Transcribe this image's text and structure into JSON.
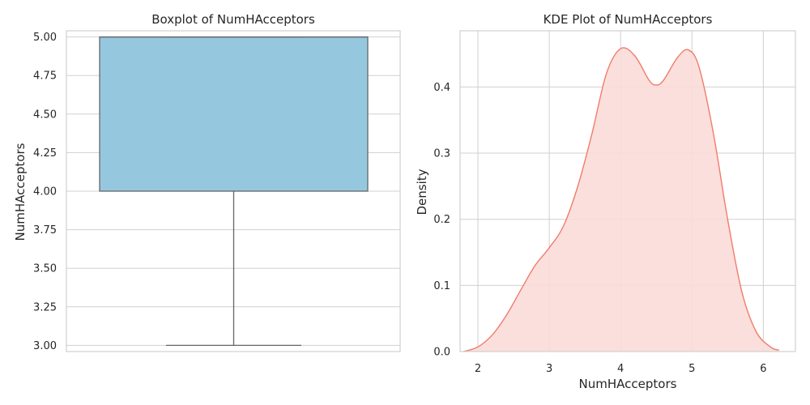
{
  "chart_data": [
    {
      "type": "boxplot",
      "title": "Boxplot of NumHAcceptors",
      "xlabel": "",
      "ylabel": "NumHAcceptors",
      "ylim": [
        2.96,
        5.04
      ],
      "yticks": [
        3.0,
        3.25,
        3.5,
        3.75,
        4.0,
        4.25,
        4.5,
        4.75,
        5.0
      ],
      "ytick_labels": [
        "3.00",
        "3.25",
        "3.50",
        "3.75",
        "4.00",
        "4.25",
        "4.50",
        "4.75",
        "5.00"
      ],
      "box": {
        "min": 3.0,
        "q1": 4.0,
        "median": 5.0,
        "q3": 5.0,
        "max": 5.0
      },
      "grid": true,
      "colors": {
        "box_fill": "#95c8df",
        "box_edge": "#666666"
      }
    },
    {
      "type": "area",
      "title": "KDE Plot of NumHAcceptors",
      "xlabel": "NumHAcceptors",
      "ylabel": "Density",
      "xlim": [
        1.75,
        6.45
      ],
      "ylim": [
        0.0,
        0.485
      ],
      "xticks": [
        2,
        3,
        4,
        5,
        6
      ],
      "xtick_labels": [
        "2",
        "3",
        "4",
        "5",
        "6"
      ],
      "yticks": [
        0.0,
        0.1,
        0.2,
        0.3,
        0.4
      ],
      "ytick_labels": [
        "0.0",
        "0.1",
        "0.2",
        "0.3",
        "0.4"
      ],
      "x": [
        1.8,
        2.0,
        2.2,
        2.4,
        2.6,
        2.8,
        3.0,
        3.2,
        3.4,
        3.6,
        3.8,
        4.0,
        4.2,
        4.4,
        4.5,
        4.6,
        4.8,
        4.95,
        5.1,
        5.3,
        5.5,
        5.7,
        5.9,
        6.1,
        6.22
      ],
      "y": [
        0.0,
        0.007,
        0.025,
        0.055,
        0.093,
        0.13,
        0.157,
        0.19,
        0.25,
        0.33,
        0.42,
        0.458,
        0.447,
        0.41,
        0.403,
        0.41,
        0.445,
        0.456,
        0.43,
        0.33,
        0.2,
        0.09,
        0.03,
        0.007,
        0.002
      ],
      "grid": true,
      "colors": {
        "line": "#f07c6c",
        "fill": "#fbdcd8"
      }
    }
  ]
}
